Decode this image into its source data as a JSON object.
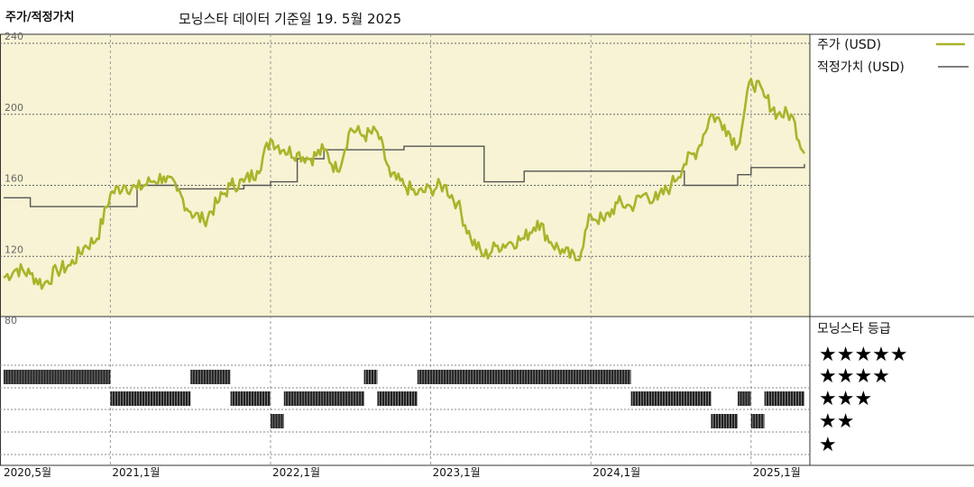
{
  "header": {
    "title": "주가/적정가치",
    "subtitle": "모닝스타 데이터 기준일 19. 5월 2025"
  },
  "colors": {
    "price_line": "#a9b42a",
    "fair_value_line": "#555555",
    "panel_bg": "#f7f3d4"
  },
  "chart_data": {
    "type": "line",
    "x_start": "2020-05",
    "x_end": "2025-05",
    "x_ticks": [
      "2020,5월",
      "2021,1월",
      "2022,1월",
      "2023,1월",
      "2024,1월",
      "2025,1월"
    ],
    "y_ticks": [
      "240",
      "200",
      "160",
      "120",
      "80"
    ],
    "ylim": [
      80,
      240
    ],
    "legend": {
      "price_label": "주가 (USD)",
      "fair_label": "적정가치 (USD)"
    },
    "series": [
      {
        "name": "주가 (USD)",
        "x": [
          "2020-05",
          "2020-06",
          "2020-07",
          "2020-08",
          "2020-09",
          "2020-10",
          "2020-11",
          "2020-12",
          "2021-01",
          "2021-02",
          "2021-03",
          "2021-04",
          "2021-05",
          "2021-06",
          "2021-07",
          "2021-08",
          "2021-09",
          "2021-10",
          "2021-11",
          "2021-12",
          "2022-01",
          "2022-02",
          "2022-03",
          "2022-04",
          "2022-05",
          "2022-06",
          "2022-07",
          "2022-08",
          "2022-09",
          "2022-10",
          "2022-11",
          "2022-12",
          "2023-01",
          "2023-02",
          "2023-03",
          "2023-04",
          "2023-05",
          "2023-06",
          "2023-07",
          "2023-08",
          "2023-09",
          "2023-10",
          "2023-11",
          "2023-12",
          "2024-01",
          "2024-02",
          "2024-03",
          "2024-04",
          "2024-05",
          "2024-06",
          "2024-07",
          "2024-08",
          "2024-09",
          "2024-10",
          "2024-11",
          "2024-12",
          "2025-01",
          "2025-02",
          "2025-03",
          "2025-04",
          "2025-05"
        ],
        "values": [
          108,
          113,
          110,
          104,
          112,
          115,
          125,
          130,
          155,
          160,
          158,
          162,
          165,
          157,
          145,
          140,
          150,
          160,
          162,
          168,
          186,
          180,
          178,
          175,
          180,
          168,
          192,
          188,
          190,
          165,
          160,
          155,
          158,
          160,
          150,
          130,
          120,
          126,
          128,
          130,
          140,
          128,
          122,
          118,
          143,
          140,
          150,
          148,
          155,
          152,
          160,
          172,
          180,
          200,
          194,
          182,
          220,
          210,
          200,
          200,
          178
        ]
      },
      {
        "name": "적정가치 (USD)",
        "x": [
          "2020-05",
          "2020-07",
          "2020-10",
          "2021-01",
          "2021-03",
          "2021-06",
          "2021-09",
          "2021-11",
          "2022-01",
          "2022-03",
          "2022-05",
          "2022-08",
          "2022-11",
          "2023-01",
          "2023-03",
          "2023-05",
          "2023-08",
          "2023-11",
          "2024-02",
          "2024-05",
          "2024-08",
          "2024-10",
          "2024-12",
          "2025-01",
          "2025-03",
          "2025-05"
        ],
        "values": [
          153,
          148,
          148,
          148,
          160,
          158,
          158,
          160,
          162,
          175,
          180,
          180,
          182,
          182,
          182,
          162,
          168,
          168,
          168,
          168,
          160,
          160,
          166,
          170,
          170,
          172
        ]
      }
    ],
    "rating": {
      "title": "모닝스타 등급",
      "levels": [
        "★★★★★",
        "★★★★",
        "★★★",
        "★★",
        "★"
      ],
      "segments": [
        {
          "stars": 4,
          "from": "2020-05",
          "to": "2021-01"
        },
        {
          "stars": 3,
          "from": "2021-01",
          "to": "2021-07"
        },
        {
          "stars": 4,
          "from": "2021-07",
          "to": "2021-10"
        },
        {
          "stars": 3,
          "from": "2021-10",
          "to": "2022-01"
        },
        {
          "stars": 2,
          "from": "2022-01",
          "to": "2022-02"
        },
        {
          "stars": 3,
          "from": "2022-02",
          "to": "2022-08"
        },
        {
          "stars": 4,
          "from": "2022-08",
          "to": "2022-09"
        },
        {
          "stars": 3,
          "from": "2022-09",
          "to": "2022-12"
        },
        {
          "stars": 4,
          "from": "2022-12",
          "to": "2024-04"
        },
        {
          "stars": 3,
          "from": "2024-04",
          "to": "2024-10"
        },
        {
          "stars": 2,
          "from": "2024-10",
          "to": "2024-12"
        },
        {
          "stars": 3,
          "from": "2024-12",
          "to": "2025-01"
        },
        {
          "stars": 2,
          "from": "2025-01",
          "to": "2025-02"
        },
        {
          "stars": 3,
          "from": "2025-02",
          "to": "2025-05"
        }
      ]
    }
  }
}
